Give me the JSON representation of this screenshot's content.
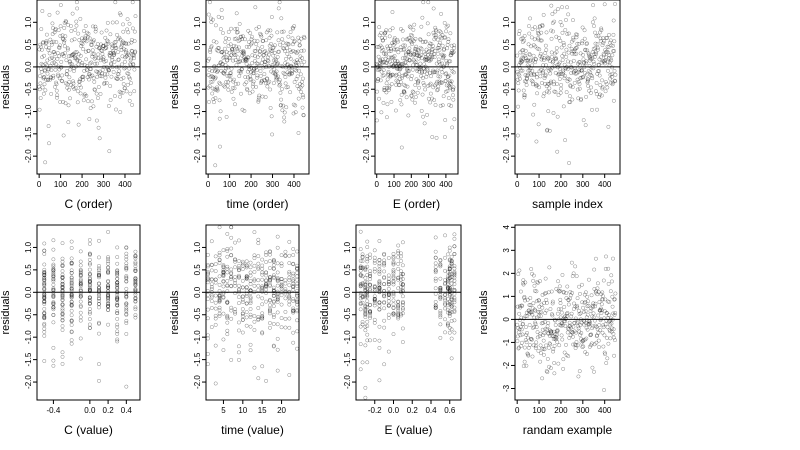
{
  "chart_data": [
    {
      "type": "scatter",
      "panel": "p1",
      "xlabel": "C (order)",
      "ylabel": "residuals",
      "xlim": [
        -10,
        470
      ],
      "ylim": [
        -2.4,
        1.5
      ],
      "xticks": [
        0,
        100,
        200,
        300,
        400
      ],
      "xtick_labels": [
        "0",
        "100",
        "200",
        "300",
        "400"
      ],
      "yticks": [
        -2,
        -1.5,
        -1,
        -0.5,
        0,
        0.5,
        1
      ],
      "ytick_labels": [
        "-2.0",
        "-1.5",
        "-1.0",
        "-0.5",
        "0.0",
        "0.5",
        "1.0"
      ],
      "hline": 0,
      "x_domain": "index",
      "n": 450,
      "seed": 11
    },
    {
      "type": "scatter",
      "panel": "p2",
      "xlabel": "time (order)",
      "ylabel": "residuals",
      "xlim": [
        -10,
        470
      ],
      "ylim": [
        -2.4,
        1.5
      ],
      "xticks": [
        0,
        100,
        200,
        300,
        400
      ],
      "xtick_labels": [
        "0",
        "100",
        "200",
        "300",
        "400"
      ],
      "yticks": [
        -2,
        -1.5,
        -1,
        -0.5,
        0,
        0.5,
        1
      ],
      "ytick_labels": [
        "-2.0",
        "-1.5",
        "-1.0",
        "-0.5",
        "0.0",
        "0.5",
        "1.0"
      ],
      "hline": 0,
      "x_domain": "index",
      "n": 450,
      "seed": 22
    },
    {
      "type": "scatter",
      "panel": "p3",
      "xlabel": "E (order)",
      "ylabel": "residuals",
      "xlim": [
        -10,
        470
      ],
      "ylim": [
        -2.4,
        1.5
      ],
      "xticks": [
        0,
        100,
        200,
        300,
        400
      ],
      "xtick_labels": [
        "0",
        "100",
        "200",
        "300",
        "400"
      ],
      "yticks": [
        -2,
        -1.5,
        -1,
        -0.5,
        0,
        0.5,
        1
      ],
      "ytick_labels": [
        "-2.0",
        "-1.5",
        "-1.0",
        "-0.5",
        "0.0",
        "0.5",
        "1.0"
      ],
      "hline": 0,
      "x_domain": "index",
      "n": 450,
      "seed": 33
    },
    {
      "type": "scatter",
      "panel": "p4",
      "xlabel": "sample index",
      "ylabel": "residuals",
      "xlim": [
        -10,
        470
      ],
      "ylim": [
        -2.4,
        1.5
      ],
      "xticks": [
        0,
        100,
        200,
        300,
        400
      ],
      "xtick_labels": [
        "0",
        "100",
        "200",
        "300",
        "400"
      ],
      "yticks": [
        -2,
        -1.5,
        -1,
        -0.5,
        0,
        0.5,
        1
      ],
      "ytick_labels": [
        "-2.0",
        "-1.5",
        "-1.0",
        "-0.5",
        "0.0",
        "0.5",
        "1.0"
      ],
      "hline": 0,
      "x_domain": "index",
      "n": 450,
      "seed": 44
    },
    {
      "type": "scatter",
      "panel": "p5",
      "xlabel": "C (value)",
      "ylabel": "residuals",
      "xlim": [
        -0.58,
        0.55
      ],
      "ylim": [
        -2.4,
        1.5
      ],
      "xticks": [
        -0.4,
        0,
        0.2,
        0.4
      ],
      "xtick_labels": [
        "-0.4",
        "0.0",
        "0.2",
        "0.4"
      ],
      "yticks": [
        -2,
        -1.5,
        -1,
        -0.5,
        0,
        0.5,
        1
      ],
      "ytick_labels": [
        "-2.0",
        "-1.5",
        "-1.0",
        "-0.5",
        "0.0",
        "0.5",
        "1.0"
      ],
      "hline": 0,
      "x_domain": "discrete",
      "x_levels": [
        -0.5,
        -0.4,
        -0.3,
        -0.2,
        -0.1,
        0,
        0.1,
        0.2,
        0.3,
        0.4,
        0.5
      ],
      "n": 450,
      "seed": 55
    },
    {
      "type": "scatter",
      "panel": "p6",
      "xlabel": "time (value)",
      "ylabel": "residuals",
      "xlim": [
        0.5,
        24.5
      ],
      "ylim": [
        -2.4,
        1.5
      ],
      "xticks": [
        5,
        10,
        15,
        20
      ],
      "xtick_labels": [
        "5",
        "10",
        "15",
        "20"
      ],
      "yticks": [
        -2,
        -1.5,
        -1,
        -0.5,
        0,
        0.5,
        1
      ],
      "ytick_labels": [
        "-2.0",
        "-1.5",
        "-1.0",
        "-0.5",
        "0.0",
        "0.5",
        "1.0"
      ],
      "hline": 0,
      "x_domain": "discrete",
      "x_levels": [
        1,
        2,
        3,
        4,
        5,
        6,
        7,
        8,
        9,
        10,
        11,
        12,
        13,
        14,
        15,
        16,
        17,
        18,
        19,
        20,
        21,
        22,
        23,
        24
      ],
      "n": 450,
      "seed": 66
    },
    {
      "type": "scatter",
      "panel": "p7",
      "xlabel": "E (value)",
      "ylabel": "residuals",
      "xlim": [
        -0.4,
        0.72
      ],
      "ylim": [
        -2.4,
        1.5
      ],
      "xticks": [
        -0.2,
        0,
        0.2,
        0.4,
        0.6
      ],
      "xtick_labels": [
        "-0.2",
        "0.0",
        "0.2",
        "0.4",
        "0.6"
      ],
      "yticks": [
        -2,
        -1.5,
        -1,
        -0.5,
        0,
        0.5,
        1
      ],
      "ytick_labels": [
        "-2.0",
        "-1.5",
        "-1.0",
        "-0.5",
        "0.0",
        "0.5",
        "1.0"
      ],
      "hline": 0,
      "x_domain": "discrete",
      "x_levels": [
        -0.35,
        -0.33,
        -0.3,
        -0.28,
        -0.25,
        -0.2,
        -0.15,
        -0.1,
        -0.05,
        0,
        0.05,
        0.08,
        0.1,
        0.45,
        0.5,
        0.55,
        0.58,
        0.6,
        0.62,
        0.65
      ],
      "n": 450,
      "seed": 77
    },
    {
      "type": "scatter",
      "panel": "p8",
      "xlabel": "randam example",
      "ylabel": "residuals",
      "xlim": [
        -10,
        470
      ],
      "ylim": [
        -3.5,
        4.1
      ],
      "xticks": [
        0,
        100,
        200,
        300,
        400
      ],
      "xtick_labels": [
        "0",
        "100",
        "200",
        "300",
        "400"
      ],
      "yticks": [
        -3,
        -2,
        -1,
        0,
        1,
        2,
        3,
        4
      ],
      "ytick_labels": [
        "-3",
        "-2",
        "-1",
        "0",
        "1",
        "2",
        "3",
        "4"
      ],
      "hline": 0,
      "x_domain": "index",
      "n": 450,
      "seed": 88
    }
  ]
}
